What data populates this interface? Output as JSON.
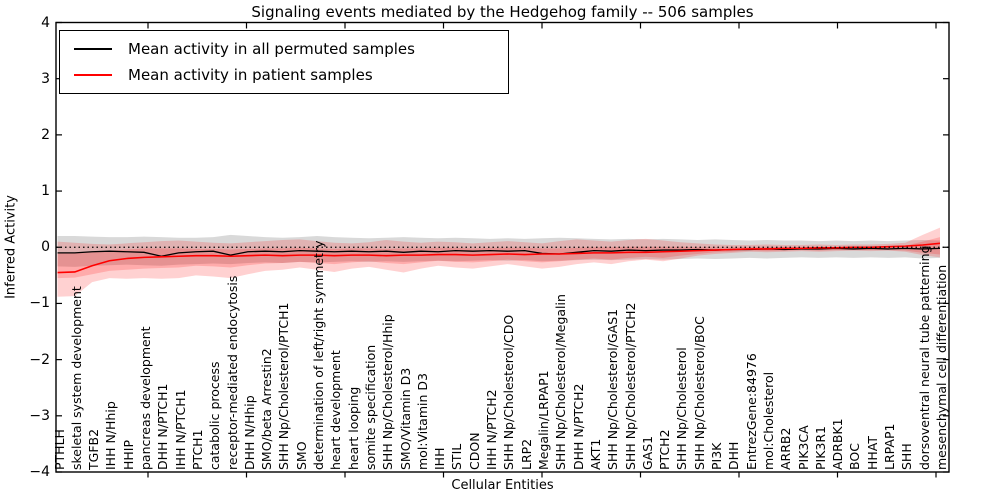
{
  "chart_data": {
    "type": "line",
    "title": "Signaling events mediated by the Hedgehog family -- 506 samples",
    "xlabel": "Cellular Entities",
    "ylabel": "Inferred Activity",
    "ylim": [
      -4,
      4
    ],
    "yticks": [
      4,
      3,
      2,
      1,
      0,
      -1,
      -2,
      -3,
      -4
    ],
    "grid": false,
    "zero_line_style": "dotted",
    "legend_position": "upper left",
    "colors": {
      "permuted_line": "#000000",
      "patient_line": "#ff0000",
      "permuted_band": "rgba(0,0,0,0.15)",
      "patient_band": "rgba(255,0,0,0.18)",
      "axis": "#000000",
      "background": "#ffffff"
    },
    "categories": [
      "PTHLH",
      "skeletal system development",
      "TGFB2",
      "IHH N/Hhip",
      "HHIP",
      "pancreas development",
      "DHH N/PTCH1",
      "IHH N/PTCH1",
      "PTCH1",
      "catabolic process",
      "receptor-mediated endocytosis",
      "DHH N/Hhip",
      "SMO/beta Arrestin2",
      "SHH Np/Cholesterol/PTCH1",
      "SMO",
      "determination of left/right symmetry",
      "heart development",
      "heart looping",
      "somite specification",
      "SHH Np/Cholesterol/Hhip",
      "SMO/Vitamin D3",
      "mol:Vitamin D3",
      "IHH",
      "STIL",
      "CDON",
      "IHH N/PTCH2",
      "SHH Np/Cholesterol/CDO",
      "LRP2",
      "Megalin/LRPAP1",
      "SHH Np/Cholesterol/Megalin",
      "DHH N/PTCH2",
      "AKT1",
      "SHH Np/Cholesterol/GAS1",
      "SHH Np/Cholesterol/PTCH2",
      "GAS1",
      "PTCH2",
      "SHH Np/Cholesterol",
      "SHH Np/Cholesterol/BOC",
      "PI3K",
      "DHH",
      "EntrezGene:84976",
      "mol:Cholesterol",
      "ARRB2",
      "PIK3CA",
      "PIK3R1",
      "ADRBK1",
      "BOC",
      "HHAT",
      "LRPAP1",
      "SHH",
      "dorsoventral neural tube patterning",
      "mesenchymal cell differentiation"
    ],
    "series": [
      {
        "name": "Mean activity in all permuted samples",
        "color": "#000000",
        "values": [
          -0.1,
          -0.1,
          -0.08,
          -0.07,
          -0.08,
          -0.09,
          -0.16,
          -0.1,
          -0.08,
          -0.07,
          -0.14,
          -0.08,
          -0.07,
          -0.08,
          -0.06,
          -0.07,
          -0.08,
          -0.07,
          -0.08,
          -0.07,
          -0.09,
          -0.07,
          -0.08,
          -0.06,
          -0.07,
          -0.06,
          -0.07,
          -0.06,
          -0.11,
          -0.12,
          -0.09,
          -0.06,
          -0.07,
          -0.05,
          -0.06,
          -0.05,
          -0.05,
          -0.04,
          -0.05,
          -0.04,
          -0.04,
          -0.03,
          -0.04,
          -0.03,
          -0.03,
          -0.02,
          -0.03,
          -0.02,
          -0.03,
          -0.02,
          -0.03,
          -0.02
        ],
        "band_top": [
          0.2,
          0.2,
          0.19,
          0.18,
          0.18,
          0.19,
          0.18,
          0.17,
          0.17,
          0.18,
          0.22,
          0.2,
          0.18,
          0.17,
          0.18,
          0.2,
          0.18,
          0.17,
          0.16,
          0.17,
          0.18,
          0.17,
          0.16,
          0.17,
          0.16,
          0.15,
          0.16,
          0.15,
          0.16,
          0.17,
          0.16,
          0.15,
          0.14,
          0.15,
          0.14,
          0.15,
          0.14,
          0.13,
          0.14,
          0.13,
          0.12,
          0.13,
          0.12,
          0.12,
          0.11,
          0.12,
          0.11,
          0.12,
          0.11,
          0.12,
          0.13,
          0.12
        ],
        "band_bottom": [
          -0.34,
          -0.35,
          -0.33,
          -0.32,
          -0.31,
          -0.32,
          -0.33,
          -0.31,
          -0.3,
          -0.29,
          -0.3,
          -0.28,
          -0.27,
          -0.28,
          -0.26,
          -0.27,
          -0.26,
          -0.25,
          -0.26,
          -0.25,
          -0.26,
          -0.25,
          -0.24,
          -0.25,
          -0.24,
          -0.23,
          -0.24,
          -0.23,
          -0.25,
          -0.24,
          -0.23,
          -0.22,
          -0.23,
          -0.22,
          -0.21,
          -0.22,
          -0.21,
          -0.2,
          -0.21,
          -0.2,
          -0.19,
          -0.2,
          -0.19,
          -0.18,
          -0.19,
          -0.18,
          -0.19,
          -0.18,
          -0.19,
          -0.18,
          -0.2,
          -0.19
        ]
      },
      {
        "name": "Mean activity in patient samples",
        "color": "#ff0000",
        "values": [
          -0.45,
          -0.44,
          -0.33,
          -0.24,
          -0.2,
          -0.18,
          -0.17,
          -0.16,
          -0.15,
          -0.15,
          -0.16,
          -0.15,
          -0.14,
          -0.15,
          -0.14,
          -0.14,
          -0.15,
          -0.14,
          -0.14,
          -0.15,
          -0.14,
          -0.14,
          -0.13,
          -0.13,
          -0.14,
          -0.13,
          -0.12,
          -0.13,
          -0.12,
          -0.12,
          -0.11,
          -0.1,
          -0.1,
          -0.09,
          -0.09,
          -0.08,
          -0.07,
          -0.06,
          -0.05,
          -0.04,
          -0.03,
          -0.03,
          -0.02,
          -0.02,
          -0.01,
          -0.01,
          0.0,
          0.0,
          0.01,
          0.02,
          0.04,
          0.07
        ],
        "band_top": [
          0.1,
          0.08,
          0.06,
          0.05,
          0.07,
          0.09,
          0.11,
          0.12,
          0.1,
          0.08,
          0.07,
          0.09,
          0.11,
          0.13,
          0.14,
          0.11,
          0.08,
          0.07,
          0.09,
          0.13,
          0.1,
          0.08,
          0.1,
          0.09,
          0.07,
          0.09,
          0.11,
          0.09,
          0.07,
          0.11,
          0.14,
          0.12,
          0.1,
          0.13,
          0.15,
          0.12,
          0.09,
          0.07,
          0.05,
          0.04,
          0.04,
          0.05,
          0.04,
          0.04,
          0.05,
          0.04,
          0.05,
          0.05,
          0.06,
          0.08,
          0.22,
          0.35
        ],
        "band_bottom": [
          -0.88,
          -0.87,
          -0.62,
          -0.55,
          -0.56,
          -0.55,
          -0.56,
          -0.55,
          -0.5,
          -0.52,
          -0.55,
          -0.48,
          -0.42,
          -0.4,
          -0.36,
          -0.4,
          -0.44,
          -0.38,
          -0.35,
          -0.4,
          -0.45,
          -0.38,
          -0.33,
          -0.36,
          -0.38,
          -0.34,
          -0.3,
          -0.34,
          -0.38,
          -0.35,
          -0.3,
          -0.27,
          -0.3,
          -0.25,
          -0.22,
          -0.25,
          -0.2,
          -0.15,
          -0.12,
          -0.1,
          -0.08,
          -0.09,
          -0.08,
          -0.07,
          -0.08,
          -0.07,
          -0.06,
          -0.07,
          -0.06,
          -0.08,
          -0.14,
          -0.18
        ],
        "band_inner_top": [
          -0.1,
          -0.1,
          -0.08,
          -0.06,
          -0.04,
          -0.02,
          -0.02,
          -0.02,
          -0.03,
          -0.03,
          -0.04,
          -0.03,
          -0.02,
          -0.02,
          -0.01,
          -0.02,
          -0.03,
          -0.02,
          -0.02,
          -0.03,
          -0.02,
          -0.02,
          -0.01,
          -0.01,
          -0.02,
          -0.01,
          -0.01,
          -0.01,
          -0.02,
          -0.02,
          -0.01,
          0.0,
          0.0,
          0.01,
          0.01,
          0.01,
          0.01,
          0.0,
          0.0,
          0.0,
          0.0,
          0.01,
          0.0,
          0.0,
          0.01,
          0.0,
          0.01,
          0.01,
          0.02,
          0.03,
          0.1,
          0.18
        ],
        "band_inner_bottom": [
          -0.55,
          -0.54,
          -0.48,
          -0.42,
          -0.4,
          -0.38,
          -0.37,
          -0.36,
          -0.33,
          -0.34,
          -0.36,
          -0.32,
          -0.29,
          -0.28,
          -0.26,
          -0.28,
          -0.3,
          -0.27,
          -0.25,
          -0.28,
          -0.3,
          -0.27,
          -0.24,
          -0.26,
          -0.27,
          -0.25,
          -0.22,
          -0.25,
          -0.27,
          -0.25,
          -0.22,
          -0.2,
          -0.22,
          -0.19,
          -0.17,
          -0.19,
          -0.15,
          -0.12,
          -0.09,
          -0.08,
          -0.06,
          -0.07,
          -0.06,
          -0.05,
          -0.06,
          -0.05,
          -0.05,
          -0.05,
          -0.05,
          -0.06,
          -0.1,
          -0.13
        ]
      }
    ]
  }
}
